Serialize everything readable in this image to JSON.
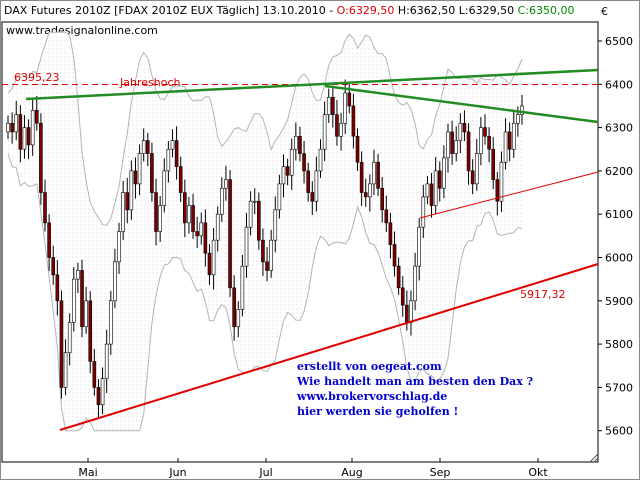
{
  "window": {
    "title_instrument": "DAX Futures 2010Z [FDAX 2010Z EUX  Täglich] 13.10.2010 - ",
    "ohlc": {
      "open": "O:6329,50",
      "high": " H:6362,50",
      "low": " L:6329,50",
      "close": " C:6350,00"
    },
    "source_url": "www.tradesignalonline.com",
    "currency_symbol": "€"
  },
  "colors": {
    "open": "#dd0000",
    "close": "#008800",
    "support": "#e00000",
    "resistance": "#228b22",
    "candle_up": "#ffffff",
    "candle_down": "#7a0000",
    "annotation": "#0000cc"
  },
  "annotations": {
    "level_value": "6395,23",
    "level_label": "Jahreshoch",
    "support_value": "5917,32",
    "text_lines": [
      "erstellt von oegeat.com",
      "Wie handelt man am besten den Dax ?",
      "www.brokervorschlag.de",
      "hier werden sie geholfen !"
    ]
  },
  "chart_data": {
    "type": "candlestick",
    "y_ticks": [
      "6500",
      "6400",
      "6300",
      "6200",
      "6100",
      "6000",
      "5900",
      "5800",
      "5700",
      "5600"
    ],
    "x_ticks": [
      "Mai",
      "Jun",
      "Jul",
      "Aug",
      "Sep",
      "Okt"
    ],
    "ylim": [
      5580,
      6520
    ],
    "horizontal_level": 6395.23,
    "close_series": [
      6310,
      6290,
      6330,
      6250,
      6300,
      6260,
      6340,
      6310,
      6150,
      6080,
      6000,
      5960,
      5900,
      5700,
      5780,
      5850,
      5950,
      5970,
      5840,
      5900,
      5760,
      5700,
      5660,
      5720,
      5800,
      5900,
      5990,
      6060,
      6150,
      6110,
      6200,
      6170,
      6240,
      6270,
      6240,
      6150,
      6060,
      6120,
      6200,
      6250,
      6270,
      6210,
      6150,
      6080,
      6120,
      6060,
      6050,
      6080,
      6010,
      5960,
      6040,
      6100,
      6160,
      6180,
      5930,
      5840,
      5880,
      5980,
      6070,
      6130,
      6130,
      6040,
      5990,
      5970,
      6040,
      6110,
      6170,
      6210,
      6190,
      6250,
      6280,
      6240,
      6200,
      6150,
      6130,
      6200,
      6250,
      6330,
      6370,
      6330,
      6280,
      6310,
      6380,
      6350,
      6280,
      6220,
      6150,
      6140,
      6170,
      6220,
      6160,
      6110,
      6080,
      6030,
      5980,
      5930,
      5890,
      5850,
      5900,
      5980,
      6070,
      6140,
      6170,
      6120,
      6200,
      6160,
      6230,
      6290,
      6240,
      6270,
      6310,
      6290,
      6200,
      6170,
      6240,
      6300,
      6280,
      6250,
      6180,
      6130,
      6220,
      6290,
      6250,
      6310,
      6330,
      6350
    ]
  }
}
